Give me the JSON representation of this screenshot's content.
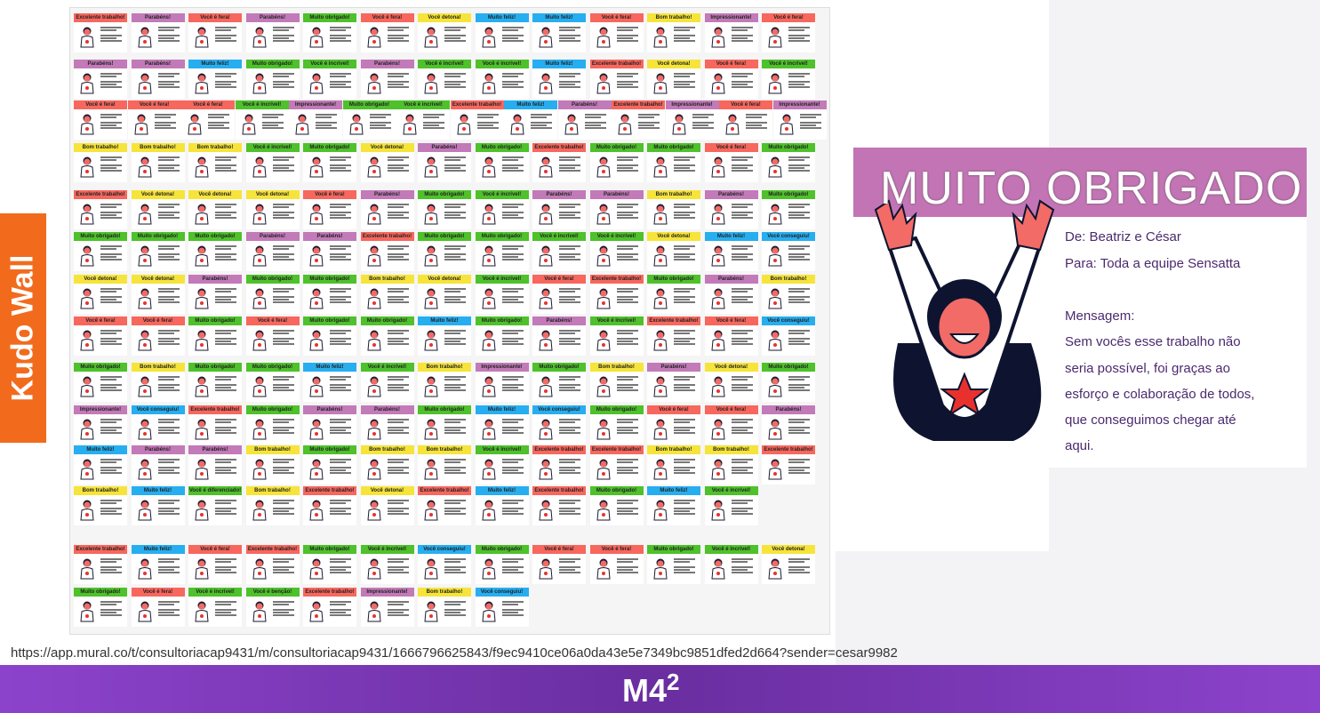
{
  "side_label": "Kudo Wall",
  "colors": {
    "Excelente trabalho!": "#f7675e",
    "Você é fera!": "#f7675e",
    "Parabéns!": "#c27ab8",
    "Impressionante!": "#c27ab8",
    "Muito obrigado!": "#4ec12b",
    "Você é incrível!": "#4ec12b",
    "Você é diferenciado!": "#4ec12b",
    "Você é benção!": "#4ec12b",
    "Você detona!": "#f6e43a",
    "Bom trabalho!": "#f6e43a",
    "Muito feliz!": "#27aef0",
    "Você conseguiu!": "#27aef0"
  },
  "wall_rows": [
    [
      "Excelente trabalho!",
      "Parabéns!",
      "Você é fera!",
      "Parabéns!",
      "Muito obrigado!",
      "Você é fera!",
      "Você detona!",
      "Muito feliz!",
      "Muito feliz!",
      "Você é fera!",
      "Bom trabalho!",
      "Impressionante!",
      "Você é fera!"
    ],
    [
      "Parabéns!",
      "Parabéns!",
      "Muito feliz!",
      "Muito obrigado!",
      "Você é incrível!",
      "Parabéns!",
      "Você é incrível!",
      "Você é incrível!",
      "Muito feliz!",
      "Excelente trabalho!",
      "Você detona!",
      "Você é fera!",
      "Você é incrível!"
    ],
    [
      "Você é fera!",
      "Você é fera!",
      "Você é fera!",
      "Você é incrível!",
      "Impressionante!",
      "Muito obrigado!",
      "Você é incrível!",
      "Excelente trabalho!",
      "Muito feliz!",
      "Parabéns!",
      "Excelente trabalho!",
      "Impressionante!",
      "Você é fera!",
      "Impressionante!"
    ],
    [
      "Bom trabalho!",
      "Bom trabalho!",
      "Bom trabalho!",
      "Você é incrível!",
      "Muito obrigado!",
      "Você detona!",
      "Parabéns!",
      "Muito obrigado!",
      "Excelente trabalho!",
      "Muito obrigado!",
      "Muito obrigado!",
      "Você é fera!",
      "Muito obrigado!"
    ],
    [
      "Excelente trabalho!",
      "Você detona!",
      "Você detona!",
      "Você detona!",
      "Você é fera!",
      "Parabéns!",
      "Muito obrigado!",
      "Você é incrível!",
      "Parabéns!",
      "Parabéns!",
      "Bom trabalho!",
      "Parabéns!",
      "Muito obrigado!"
    ],
    [
      "Muito obrigado!",
      "Muito obrigado!",
      "Muito obrigado!",
      "Parabéns!",
      "Parabéns!",
      "Excelente trabalho!",
      "Muito obrigado!",
      "Muito obrigado!",
      "Você é incrível!",
      "Você é incrível!",
      "Você detona!",
      "Muito feliz!",
      "Você conseguiu!"
    ],
    [
      "Você detona!",
      "Você detona!",
      "Parabéns!",
      "Muito obrigado!",
      "Muito obrigado!",
      "Bom trabalho!",
      "Você detona!",
      "Você é incrível!",
      "Você é fera!",
      "Excelente trabalho!",
      "Muito obrigado!",
      "Parabéns!",
      "Bom trabalho!"
    ],
    [
      "Você é fera!",
      "Você é fera!",
      "Muito obrigado!",
      "Você é fera!",
      "Muito obrigado!",
      "Muito obrigado!",
      "Muito feliz!",
      "Muito obrigado!",
      "Parabéns!",
      "Você é incrível!",
      "Excelente trabalho!",
      "Você é fera!",
      "Você conseguiu!"
    ],
    [
      "Muito obrigado!",
      "Bom trabalho!",
      "Muito obrigado!",
      "Muito obrigado!",
      "Muito feliz!",
      "Você é incrível!",
      "Bom trabalho!",
      "Impressionante!",
      "Muito obrigado!",
      "Bom trabalho!",
      "Parabéns!",
      "Você detona!",
      "Muito obrigado!"
    ],
    [
      "Impressionante!",
      "Você conseguiu!",
      "Excelente trabalho!",
      "Muito obrigado!",
      "Parabéns!",
      "Parabéns!",
      "Muito obrigado!",
      "Muito feliz!",
      "Você conseguiu!",
      "Muito obrigado!",
      "Você é fera!",
      "Você é fera!",
      "Parabéns!"
    ],
    [
      "Muito feliz!",
      "Parabéns!",
      "Parabéns!",
      "Bom trabalho!",
      "Muito obrigado!",
      "Bom trabalho!",
      "Bom trabalho!",
      "Você é incrível!",
      "Excelente trabalho!",
      "Excelente trabalho!",
      "Bom trabalho!",
      "Bom trabalho!",
      "Excelente trabalho!"
    ],
    [
      "Bom trabalho!",
      "Muito feliz!",
      "Você é diferenciado!",
      "Bom trabalho!",
      "Excelente trabalho!",
      "Você detona!",
      "Excelente trabalho!",
      "Muito feliz!",
      "Excelente trabalho!",
      "Muito obrigado!",
      "Muito feliz!",
      "Você é incrível!"
    ],
    [
      "Excelente trabalho!",
      "Muito feliz!",
      "Você é fera!",
      "Excelente trabalho!",
      "Muito obrigado!",
      "Você é incrível!",
      "Você conseguiu!",
      "Muito obrigado!",
      "Você é fera!",
      "Você é fera!",
      "Muito obrigado!",
      "Você é incrível!",
      "Você detona!"
    ],
    [
      "Muito obrigado!",
      "Você é fera!",
      "Você é incrível!",
      "Você é benção!",
      "Excelente trabalho!",
      "Impressionante!",
      "Bom trabalho!",
      "Você conseguiu!"
    ]
  ],
  "featured": {
    "title": "MUITO OBRIGADO",
    "from": "De: Beatriz e César",
    "to": "Para: Toda a equipe Sensatta",
    "message_label": "Mensagem:",
    "message_lines": [
      "Sem vocês esse trabalho não",
      "seria possível, foi graças ao",
      "esforço e colaboração de todos,",
      "que conseguimos chegar até",
      "aqui."
    ]
  },
  "url": "https://app.mural.co/t/consultoriacap9431/m/consultoriacap9431/1666796625843/f9ec9410ce06a0da43e5e7349bc9851dfed2d664?sender=cesar9982",
  "footer_logo": {
    "text": "M4",
    "sup": "2"
  }
}
